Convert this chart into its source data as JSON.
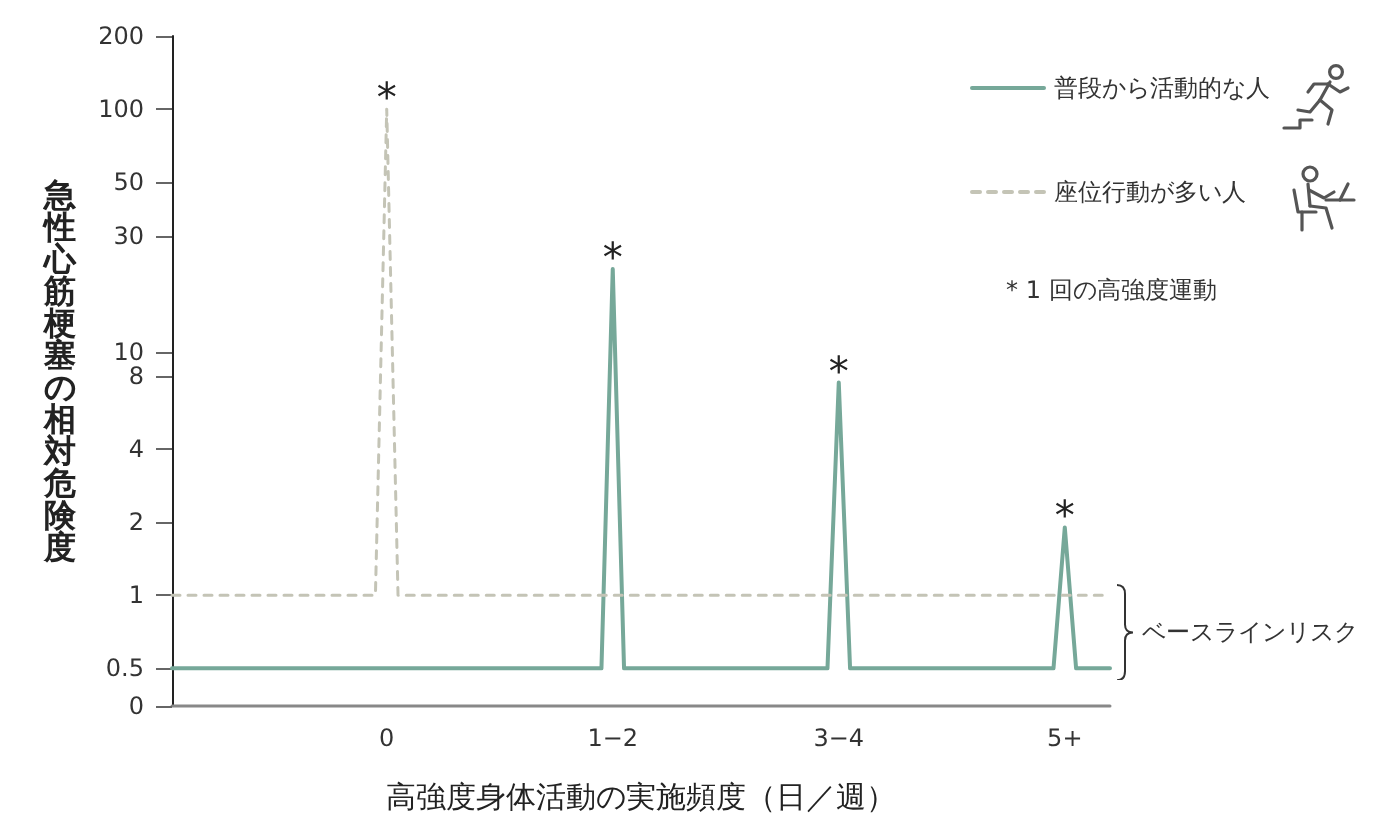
{
  "chart_data": {
    "type": "line",
    "xlabel": "高強度身体活動の実施頻度（日／週）",
    "ylabel": "急性心筋梗塞の相対危険度",
    "categories": [
      null,
      null,
      null,
      null,
      null,
      null,
      null,
      null,
      null,
      null,
      null,
      null,
      null,
      null,
      null,
      null,
      null,
      null,
      null,
      "0",
      null,
      null,
      null,
      null,
      null,
      null,
      null,
      null,
      null,
      null,
      null,
      null,
      null,
      null,
      null,
      null,
      null,
      null,
      null,
      "1−2",
      null,
      null,
      null,
      null,
      null,
      null,
      null,
      null,
      null,
      null,
      null,
      null,
      null,
      null,
      null,
      null,
      null,
      null,
      null,
      "3−4",
      null,
      null,
      null,
      null,
      null,
      null,
      null,
      null,
      null,
      null,
      null,
      null,
      null,
      null,
      null,
      null,
      null,
      null,
      null,
      "5+",
      null,
      null,
      null,
      null
    ],
    "log": true,
    "ylim": [
      0.35,
      200
    ],
    "yticks": [
      {
        "value": 0.35,
        "label": "0"
      },
      0.5,
      1,
      2,
      4,
      8,
      10,
      30,
      50,
      100,
      200
    ],
    "legend": "top right",
    "series": [
      {
        "name": "普段から活動的な人",
        "color": "#76a899",
        "values": [
          0.5,
          0.5,
          0.5,
          0.5,
          0.5,
          0.5,
          0.5,
          0.5,
          0.5,
          0.5,
          0.5,
          0.5,
          0.5,
          0.5,
          0.5,
          0.5,
          0.5,
          0.5,
          0.5,
          0.5,
          0.5,
          0.5,
          0.5,
          0.5,
          0.5,
          0.5,
          0.5,
          0.5,
          0.5,
          0.5,
          0.5,
          0.5,
          0.5,
          0.5,
          0.5,
          0.5,
          0.5,
          0.5,
          0.5,
          22,
          0.5,
          0.5,
          0.5,
          0.5,
          0.5,
          0.5,
          0.5,
          0.5,
          0.5,
          0.5,
          0.5,
          0.5,
          0.5,
          0.5,
          0.5,
          0.5,
          0.5,
          0.5,
          0.5,
          7.5,
          0.5,
          0.5,
          0.5,
          0.5,
          0.5,
          0.5,
          0.5,
          0.5,
          0.5,
          0.5,
          0.5,
          0.5,
          0.5,
          0.5,
          0.5,
          0.5,
          0.5,
          0.5,
          0.5,
          1.9,
          0.5,
          0.5,
          0.5,
          0.5
        ]
      },
      {
        "name": "座位行動が多い人",
        "color": "#c4c4b6",
        "line_style": "dashed",
        "values": [
          1,
          1,
          1,
          1,
          1,
          1,
          1,
          1,
          1,
          1,
          1,
          1,
          1,
          1,
          1,
          1,
          1,
          1,
          1,
          100,
          1,
          1,
          1,
          1,
          1,
          1,
          1,
          1,
          1,
          1,
          1,
          1,
          1,
          1,
          1,
          1,
          1,
          1,
          1,
          1,
          1,
          1,
          1,
          1,
          1,
          1,
          1,
          1,
          1,
          1,
          1,
          1,
          1,
          1,
          1,
          1,
          1,
          1,
          1,
          1,
          1,
          1,
          1,
          1,
          1,
          1,
          1,
          1,
          1,
          1,
          1,
          1,
          1,
          1,
          1,
          1,
          1,
          1,
          1,
          1,
          1,
          1,
          1,
          1
        ]
      }
    ],
    "annotations": [
      {
        "text": "*",
        "x": "0",
        "y": 100
      },
      {
        "text": "*",
        "x": "1−2",
        "y": 22
      },
      {
        "text": "*",
        "x": "3−4",
        "y": 7.5
      },
      {
        "text": "*",
        "x": "5+",
        "y": 1.9
      },
      "* 1 回の高強度運動",
      "ベースラインリスク"
    ]
  }
}
